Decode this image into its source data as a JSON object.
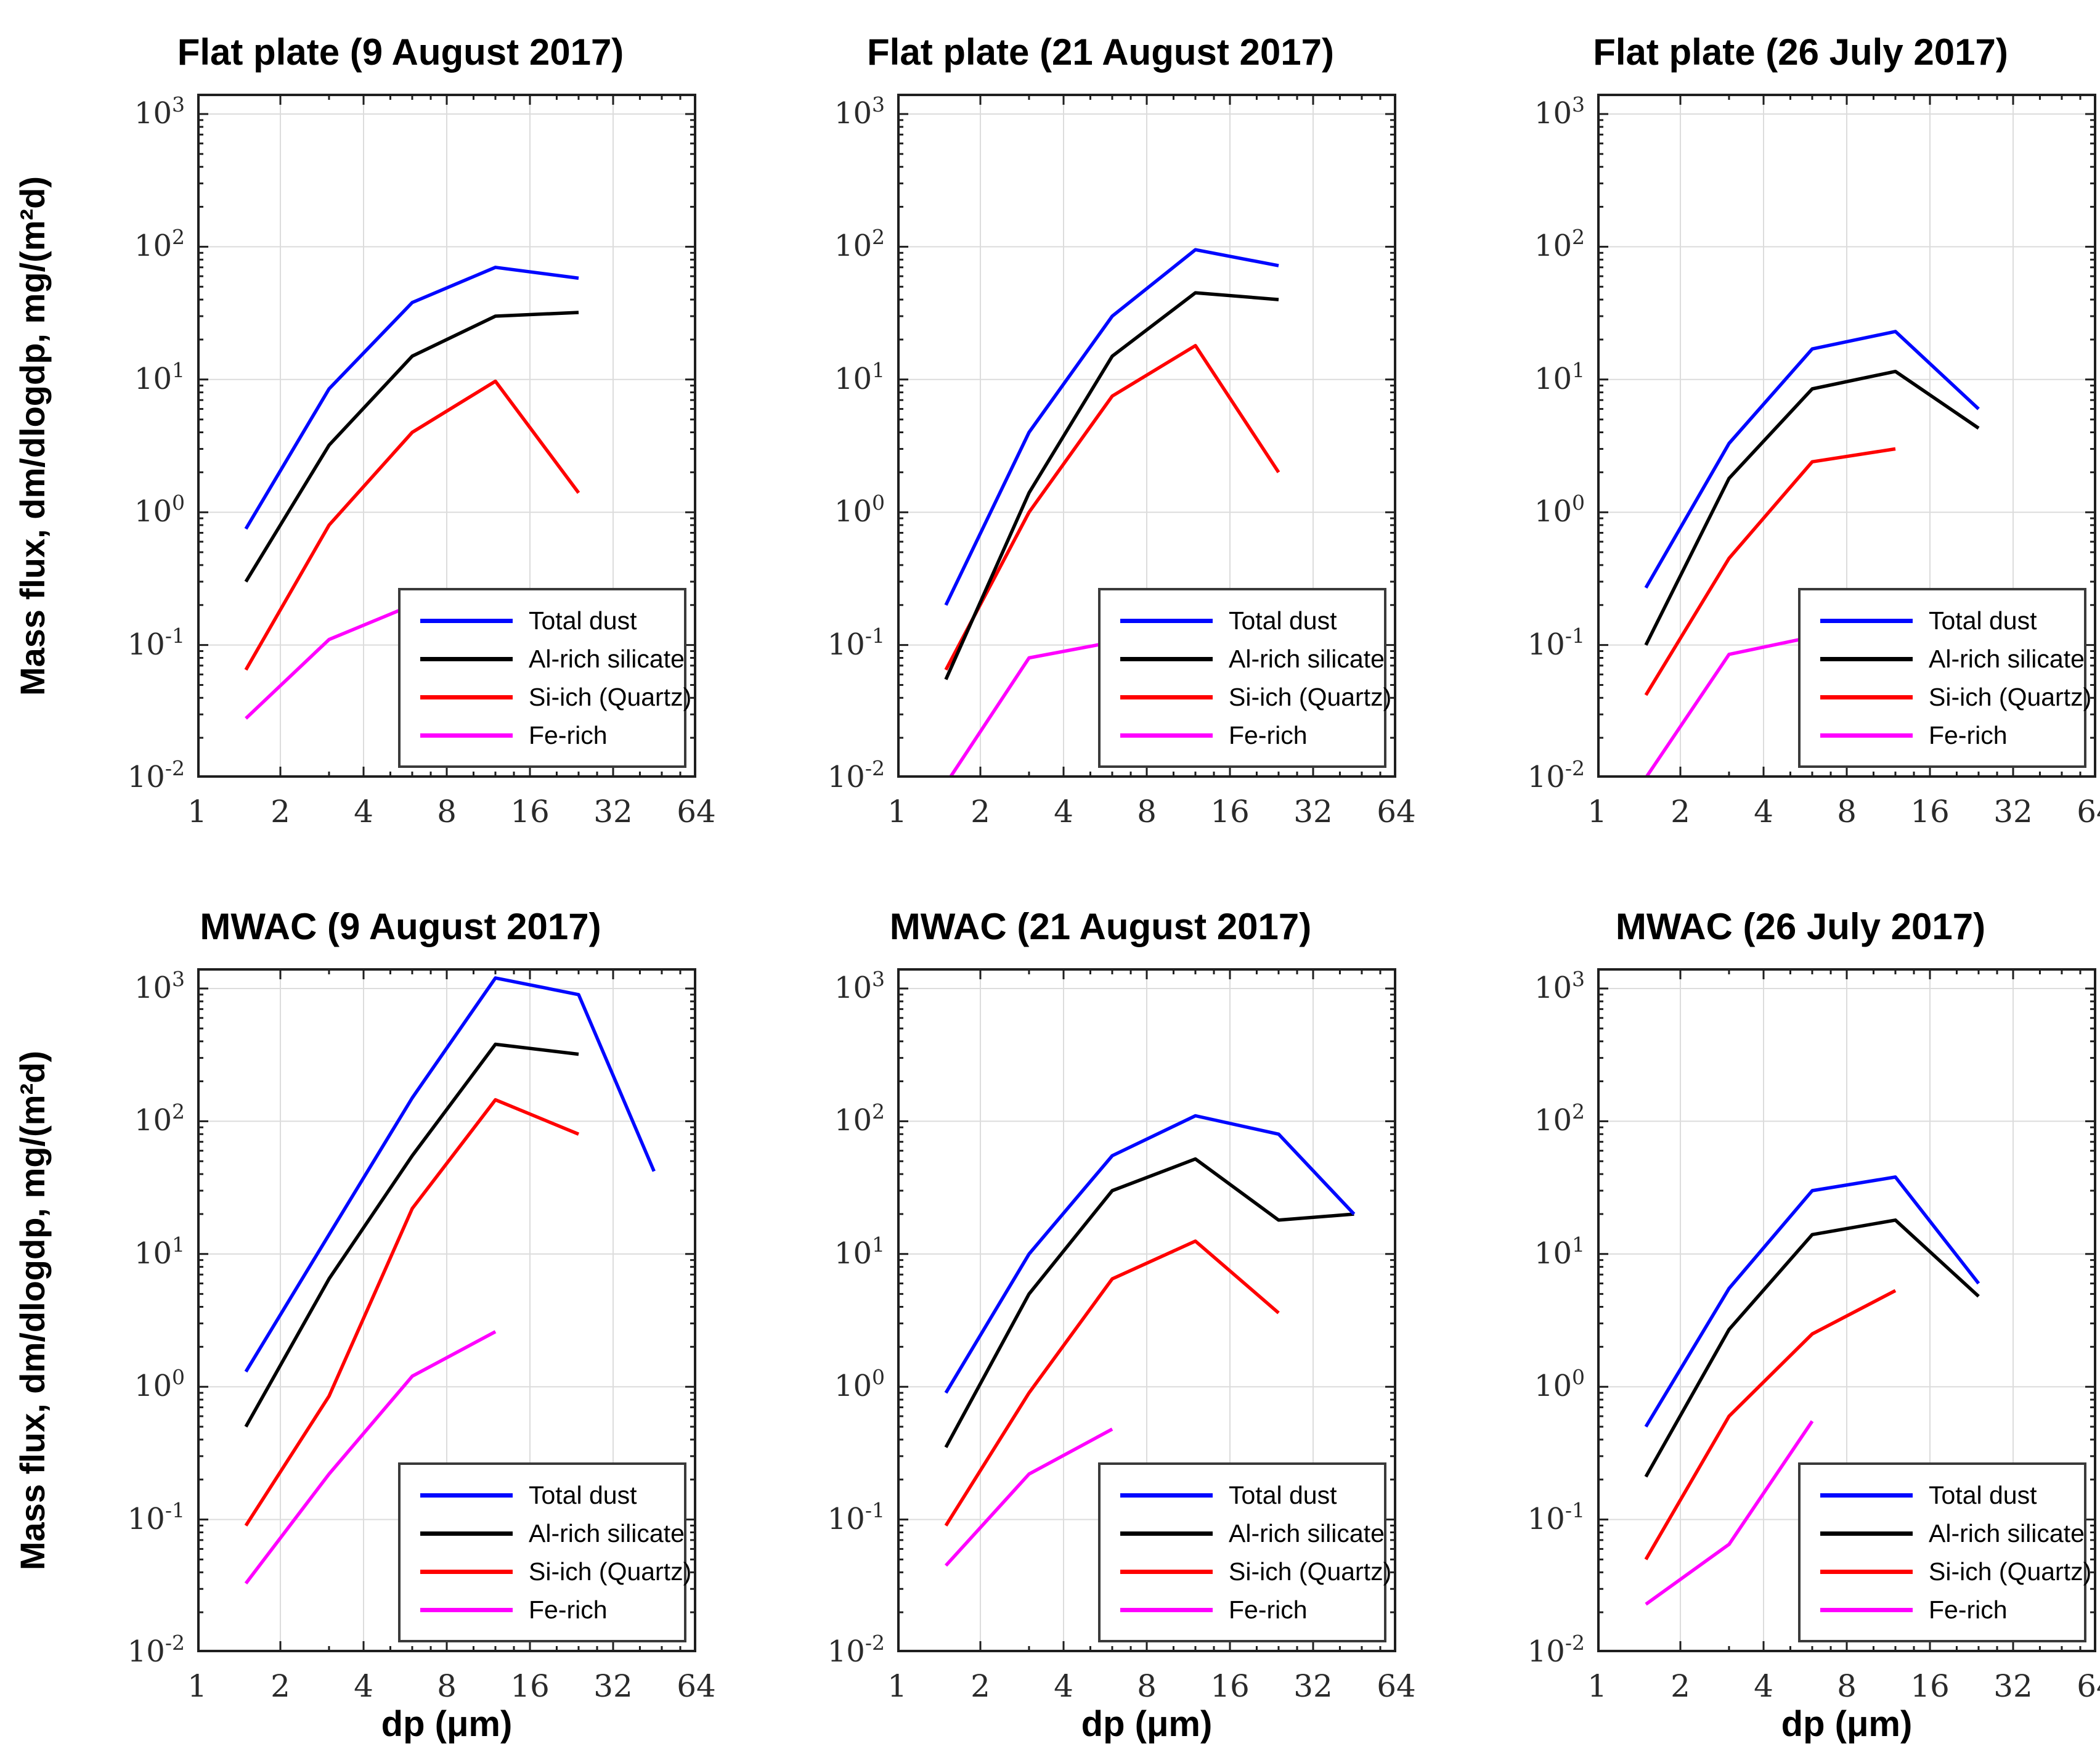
{
  "figure": {
    "background": "#ffffff",
    "rows": 2,
    "cols": 3
  },
  "axes": {
    "xlabel": "dp (μm)",
    "ylabel": "Mass flux, dm/dlogdp, mg/(m²d)",
    "x_ticks": [
      1,
      2,
      4,
      8,
      16,
      32,
      64
    ],
    "x_minor_ticks": [
      3,
      5,
      6,
      7,
      10,
      12,
      14,
      20,
      24,
      28,
      40,
      48,
      56
    ],
    "y_tick_exponents": [
      3,
      2,
      1,
      0,
      -1,
      -2
    ],
    "xlim": [
      1,
      64
    ],
    "ylim": [
      0.01,
      1420
    ],
    "x_scale": "log2",
    "y_scale": "log10",
    "grid": "on",
    "grid_color": "#dcdcdc",
    "spine_color": "#1f1f1f",
    "tick_label_color": "#2a2a2a"
  },
  "legend": {
    "position": "lower right",
    "items": [
      {
        "label": "Total dust",
        "color": "#0008ff"
      },
      {
        "label": "Al-rich silicate",
        "color": "#000000"
      },
      {
        "label": "Si-ich (Quartz)",
        "color": "#ff0000"
      },
      {
        "label": "Fe-rich",
        "color": "#ff00ff"
      }
    ]
  },
  "chart_data": [
    {
      "type": "line",
      "title": "Flat plate (9 August 2017)",
      "xlabel": "dp (μm)",
      "ylabel": "Mass flux, dm/dlogdp, mg/(m²d)",
      "series": [
        {
          "name": "Total dust",
          "color": "#0008ff",
          "x": [
            1.5,
            3,
            6,
            12,
            24
          ],
          "y": [
            0.75,
            8.5,
            38,
            70,
            58
          ]
        },
        {
          "name": "Al-rich silicate",
          "color": "#000000",
          "x": [
            1.5,
            3,
            6,
            12,
            24
          ],
          "y": [
            0.3,
            3.2,
            15,
            30,
            32
          ]
        },
        {
          "name": "Si-ich (Quartz)",
          "color": "#ff0000",
          "x": [
            1.5,
            3,
            6,
            12,
            24
          ],
          "y": [
            0.065,
            0.8,
            4.0,
            9.7,
            1.4
          ]
        },
        {
          "name": "Fe-rich",
          "color": "#ff00ff",
          "x": [
            1.5,
            3,
            6
          ],
          "y": [
            0.028,
            0.11,
            0.2
          ]
        }
      ]
    },
    {
      "type": "line",
      "title": "Flat plate (21 August 2017)",
      "xlabel": "dp (μm)",
      "ylabel": "Mass flux, dm/dlogdp, mg/(m²d)",
      "series": [
        {
          "name": "Total dust",
          "color": "#0008ff",
          "x": [
            1.5,
            3,
            6,
            12,
            24
          ],
          "y": [
            0.2,
            4.0,
            30,
            95,
            72
          ]
        },
        {
          "name": "Al-rich silicate",
          "color": "#000000",
          "x": [
            1.5,
            3,
            6,
            12,
            24
          ],
          "y": [
            0.055,
            1.4,
            15,
            45,
            40
          ]
        },
        {
          "name": "Si-ich (Quartz)",
          "color": "#ff0000",
          "x": [
            1.5,
            3,
            6,
            12,
            24
          ],
          "y": [
            0.065,
            1.0,
            7.5,
            18,
            2.0
          ]
        },
        {
          "name": "Fe-rich",
          "color": "#ff00ff",
          "x": [
            1.5,
            3,
            6
          ],
          "y": [
            0.009,
            0.08,
            0.105
          ]
        }
      ]
    },
    {
      "type": "line",
      "title": "Flat plate (26 July 2017)",
      "xlabel": "dp (μm)",
      "ylabel": "Mass flux, dm/dlogdp, mg/(m²d)",
      "series": [
        {
          "name": "Total dust",
          "color": "#0008ff",
          "x": [
            1.5,
            3,
            6,
            12,
            24
          ],
          "y": [
            0.27,
            3.3,
            17,
            23,
            6.0
          ]
        },
        {
          "name": "Al-rich silicate",
          "color": "#000000",
          "x": [
            1.5,
            3,
            6,
            12,
            24
          ],
          "y": [
            0.1,
            1.8,
            8.5,
            11.5,
            4.3
          ]
        },
        {
          "name": "Si-ich (Quartz)",
          "color": "#ff0000",
          "x": [
            1.5,
            3,
            6,
            12
          ],
          "y": [
            0.042,
            0.45,
            2.4,
            3.0
          ]
        },
        {
          "name": "Fe-rich",
          "color": "#ff00ff",
          "x": [
            1.5,
            3,
            6
          ],
          "y": [
            0.01,
            0.085,
            0.115
          ]
        }
      ]
    },
    {
      "type": "line",
      "title": "MWAC (9 August 2017)",
      "xlabel": "dp (μm)",
      "ylabel": "Mass flux, dm/dlogdp, mg/(m²d)",
      "series": [
        {
          "name": "Total dust",
          "color": "#0008ff",
          "x": [
            1.5,
            3,
            6,
            12,
            24,
            45
          ],
          "y": [
            1.3,
            14,
            150,
            1200,
            900,
            42
          ]
        },
        {
          "name": "Al-rich silicate",
          "color": "#000000",
          "x": [
            1.5,
            3,
            6,
            12,
            24
          ],
          "y": [
            0.5,
            6.5,
            55,
            380,
            320
          ]
        },
        {
          "name": "Si-ich (Quartz)",
          "color": "#ff0000",
          "x": [
            1.5,
            3,
            6,
            12,
            24
          ],
          "y": [
            0.09,
            0.85,
            22,
            145,
            80
          ]
        },
        {
          "name": "Fe-rich",
          "color": "#ff00ff",
          "x": [
            1.5,
            3,
            6,
            12
          ],
          "y": [
            0.033,
            0.22,
            1.2,
            2.6
          ]
        }
      ]
    },
    {
      "type": "line",
      "title": "MWAC (21 August 2017)",
      "xlabel": "dp (μm)",
      "ylabel": "Mass flux, dm/dlogdp, mg/(m²d)",
      "series": [
        {
          "name": "Total dust",
          "color": "#0008ff",
          "x": [
            1.5,
            3,
            6,
            12,
            24,
            45
          ],
          "y": [
            0.9,
            10,
            55,
            110,
            80,
            20
          ]
        },
        {
          "name": "Al-rich silicate",
          "color": "#000000",
          "x": [
            1.5,
            3,
            6,
            12,
            24,
            45
          ],
          "y": [
            0.35,
            5.0,
            30,
            52,
            18,
            20
          ]
        },
        {
          "name": "Si-ich (Quartz)",
          "color": "#ff0000",
          "x": [
            1.5,
            3,
            6,
            12,
            24
          ],
          "y": [
            0.09,
            0.9,
            6.5,
            12.5,
            3.6
          ]
        },
        {
          "name": "Fe-rich",
          "color": "#ff00ff",
          "x": [
            1.5,
            3,
            6
          ],
          "y": [
            0.045,
            0.22,
            0.48
          ]
        }
      ]
    },
    {
      "type": "line",
      "title": "MWAC (26 July 2017)",
      "xlabel": "dp (μm)",
      "ylabel": "Mass flux, dm/dlogdp, mg/(m²d)",
      "series": [
        {
          "name": "Total dust",
          "color": "#0008ff",
          "x": [
            1.5,
            3,
            6,
            12,
            24
          ],
          "y": [
            0.5,
            5.5,
            30,
            38,
            6.0
          ]
        },
        {
          "name": "Al-rich silicate",
          "color": "#000000",
          "x": [
            1.5,
            3,
            6,
            12,
            24
          ],
          "y": [
            0.21,
            2.7,
            14,
            18,
            4.8
          ]
        },
        {
          "name": "Si-ich (Quartz)",
          "color": "#ff0000",
          "x": [
            1.5,
            3,
            6,
            12
          ],
          "y": [
            0.05,
            0.6,
            2.5,
            5.3
          ]
        },
        {
          "name": "Fe-rich",
          "color": "#ff00ff",
          "x": [
            1.5,
            3,
            6
          ],
          "y": [
            0.023,
            0.065,
            0.55
          ]
        }
      ]
    }
  ]
}
